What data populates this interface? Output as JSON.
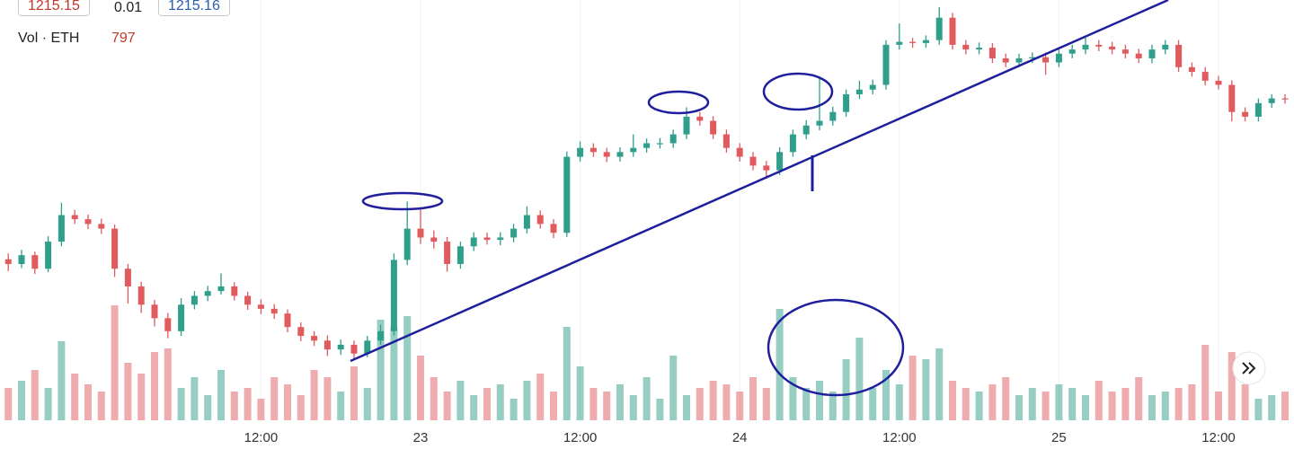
{
  "chart_data": {
    "type": "candlestick",
    "sell_price": 1215.15,
    "spread": 0.01,
    "buy_price": 1215.16,
    "volume_label": "Vol · ETH",
    "categories": [
      null,
      null,
      null,
      null,
      null,
      null,
      null,
      null,
      null,
      null,
      null,
      null,
      null,
      null,
      null,
      null,
      null,
      null,
      null,
      "12:00",
      null,
      null,
      null,
      null,
      null,
      null,
      null,
      null,
      null,
      null,
      null,
      "23",
      null,
      null,
      null,
      null,
      null,
      null,
      null,
      null,
      null,
      null,
      null,
      "12:00",
      null,
      null,
      null,
      null,
      null,
      null,
      null,
      null,
      null,
      null,
      null,
      "24",
      null,
      null,
      null,
      null,
      null,
      null,
      null,
      null,
      null,
      null,
      null,
      "12:00",
      null,
      null,
      null,
      null,
      null,
      null,
      null,
      null,
      null,
      null,
      null,
      "25",
      null,
      null,
      null,
      null,
      null,
      null,
      null,
      null,
      null,
      null,
      null,
      "12:00",
      null,
      null,
      null,
      null,
      null
    ],
    "open": [
      1188.0,
      1187.2,
      1188.7,
      1186.4,
      1191.0,
      1195.5,
      1194.8,
      1194.0,
      1193.2,
      1186.4,
      1183.4,
      1180.3,
      1178.0,
      1175.8,
      1180.3,
      1181.8,
      1182.6,
      1183.4,
      1181.8,
      1180.3,
      1179.6,
      1178.8,
      1176.5,
      1175.0,
      1174.2,
      1172.7,
      1173.5,
      1172.0,
      1174.2,
      1175.8,
      1187.9,
      1193.2,
      1191.7,
      1191.0,
      1187.2,
      1190.2,
      1191.7,
      1191.3,
      1191.7,
      1193.2,
      1195.5,
      1194.0,
      1192.5,
      1205.4,
      1206.9,
      1206.2,
      1205.4,
      1206.2,
      1206.9,
      1207.7,
      1207.7,
      1209.2,
      1212.2,
      1211.5,
      1209.2,
      1206.9,
      1205.4,
      1203.9,
      1203.1,
      1206.2,
      1209.2,
      1210.7,
      1211.5,
      1213.0,
      1216.0,
      1216.8,
      1217.6,
      1224.4,
      1224.9,
      1224.7,
      1225.2,
      1229.0,
      1224.4,
      1223.6,
      1223.9,
      1222.1,
      1221.4,
      1222.1,
      1222.3,
      1221.4,
      1222.9,
      1223.6,
      1224.4,
      1224.1,
      1223.6,
      1222.9,
      1222.1,
      1223.6,
      1224.4,
      1220.6,
      1219.8,
      1218.3,
      1217.6,
      1213.0,
      1212.2,
      1214.5,
      1215.3
    ],
    "high": [
      1189.0,
      1189.6,
      1189.3,
      1191.9,
      1197.6,
      1196.4,
      1195.6,
      1194.9,
      1193.9,
      1187.2,
      1184.2,
      1181.1,
      1178.9,
      1181.4,
      1182.6,
      1183.5,
      1185.6,
      1184.1,
      1182.5,
      1181.2,
      1180.4,
      1179.5,
      1177.3,
      1175.8,
      1175.1,
      1174.4,
      1174.2,
      1175.0,
      1176.9,
      1189.0,
      1197.8,
      1196.5,
      1192.9,
      1191.8,
      1191.0,
      1192.6,
      1192.5,
      1192.6,
      1194.0,
      1197.0,
      1196.3,
      1194.8,
      1206.3,
      1208.0,
      1207.7,
      1206.9,
      1207.0,
      1209.2,
      1208.5,
      1208.6,
      1210.0,
      1213.8,
      1213.0,
      1212.3,
      1210.0,
      1207.7,
      1206.2,
      1204.7,
      1207.0,
      1210.0,
      1211.6,
      1219.1,
      1213.9,
      1216.8,
      1218.3,
      1218.5,
      1225.2,
      1228.0,
      1225.6,
      1226.0,
      1230.8,
      1229.8,
      1225.2,
      1224.8,
      1224.7,
      1222.9,
      1222.9,
      1223.1,
      1223.1,
      1223.7,
      1224.4,
      1225.9,
      1225.2,
      1224.9,
      1224.4,
      1223.7,
      1224.4,
      1225.2,
      1225.2,
      1221.4,
      1220.6,
      1219.1,
      1218.4,
      1213.8,
      1215.3,
      1216.0,
      1216.0
    ],
    "low": [
      1186.0,
      1186.5,
      1185.5,
      1185.8,
      1190.2,
      1194.0,
      1193.1,
      1192.3,
      1185.0,
      1180.5,
      1178.9,
      1176.6,
      1174.6,
      1175.0,
      1179.5,
      1180.9,
      1182.0,
      1181.0,
      1179.4,
      1178.7,
      1177.9,
      1175.6,
      1174.1,
      1173.3,
      1171.6,
      1171.8,
      1171.1,
      1171.4,
      1173.5,
      1175.1,
      1187.0,
      1190.6,
      1189.8,
      1185.9,
      1186.4,
      1189.4,
      1190.5,
      1190.4,
      1190.9,
      1192.4,
      1193.2,
      1191.6,
      1191.8,
      1204.6,
      1205.4,
      1204.5,
      1204.6,
      1205.4,
      1206.1,
      1206.8,
      1206.9,
      1208.4,
      1210.7,
      1208.4,
      1206.1,
      1204.6,
      1203.1,
      1201.7,
      1202.3,
      1205.4,
      1208.4,
      1209.9,
      1210.7,
      1212.2,
      1215.2,
      1216.0,
      1216.8,
      1223.6,
      1223.9,
      1223.9,
      1224.4,
      1223.6,
      1222.8,
      1222.8,
      1221.3,
      1220.6,
      1220.6,
      1221.3,
      1219.3,
      1220.6,
      1222.1,
      1222.8,
      1223.3,
      1222.8,
      1222.1,
      1221.3,
      1221.3,
      1222.8,
      1219.8,
      1219.0,
      1217.5,
      1216.8,
      1211.4,
      1211.4,
      1211.4,
      1213.7,
      1214.4
    ],
    "close": [
      1187.2,
      1188.7,
      1186.4,
      1191.0,
      1195.5,
      1194.8,
      1194.0,
      1193.2,
      1186.4,
      1183.4,
      1180.3,
      1178.0,
      1175.8,
      1180.3,
      1181.8,
      1182.6,
      1183.4,
      1181.8,
      1180.3,
      1179.6,
      1178.8,
      1176.5,
      1175.0,
      1174.2,
      1172.7,
      1173.5,
      1172.0,
      1174.2,
      1175.8,
      1187.9,
      1193.2,
      1191.7,
      1191.0,
      1187.2,
      1190.2,
      1191.7,
      1191.3,
      1191.7,
      1193.2,
      1195.5,
      1194.0,
      1192.5,
      1205.4,
      1206.9,
      1206.2,
      1205.4,
      1206.2,
      1206.9,
      1207.7,
      1207.7,
      1209.2,
      1212.2,
      1211.5,
      1209.2,
      1206.9,
      1205.4,
      1203.9,
      1203.1,
      1206.2,
      1209.2,
      1210.7,
      1211.5,
      1213.0,
      1216.0,
      1216.8,
      1217.6,
      1224.4,
      1224.9,
      1224.7,
      1225.2,
      1229.0,
      1224.4,
      1223.6,
      1223.9,
      1222.1,
      1221.4,
      1222.1,
      1222.3,
      1221.4,
      1222.9,
      1223.6,
      1224.4,
      1224.1,
      1223.6,
      1222.9,
      1222.1,
      1223.6,
      1224.4,
      1220.6,
      1219.8,
      1218.3,
      1217.6,
      1213.0,
      1212.2,
      1214.5,
      1215.3,
      1215.2
    ],
    "volume": [
      900,
      1100,
      1400,
      900,
      2200,
      1300,
      1000,
      800,
      3200,
      1600,
      1300,
      1900,
      2000,
      900,
      1200,
      700,
      1400,
      800,
      900,
      600,
      1200,
      1000,
      700,
      1400,
      1200,
      800,
      1500,
      900,
      2800,
      2600,
      2900,
      1800,
      1200,
      800,
      1100,
      700,
      900,
      1000,
      600,
      1100,
      1300,
      800,
      2600,
      1500,
      900,
      800,
      1000,
      700,
      1200,
      600,
      1800,
      700,
      900,
      1100,
      1000,
      800,
      1200,
      900,
      3100,
      1200,
      900,
      1100,
      800,
      1700,
      2300,
      900,
      1400,
      1000,
      1800,
      1700,
      2000,
      1100,
      900,
      800,
      1000,
      1200,
      700,
      900,
      800,
      1000,
      900,
      700,
      1100,
      800,
      900,
      1200,
      700,
      800,
      900,
      1000,
      2100,
      800,
      1900,
      1000,
      600,
      700,
      797
    ],
    "ylim": [
      1168,
      1232
    ],
    "volume_ylim": [
      0,
      4000
    ],
    "up_color": "#2f9e8a",
    "down_color": "#e05a5e",
    "grid": true
  }
}
